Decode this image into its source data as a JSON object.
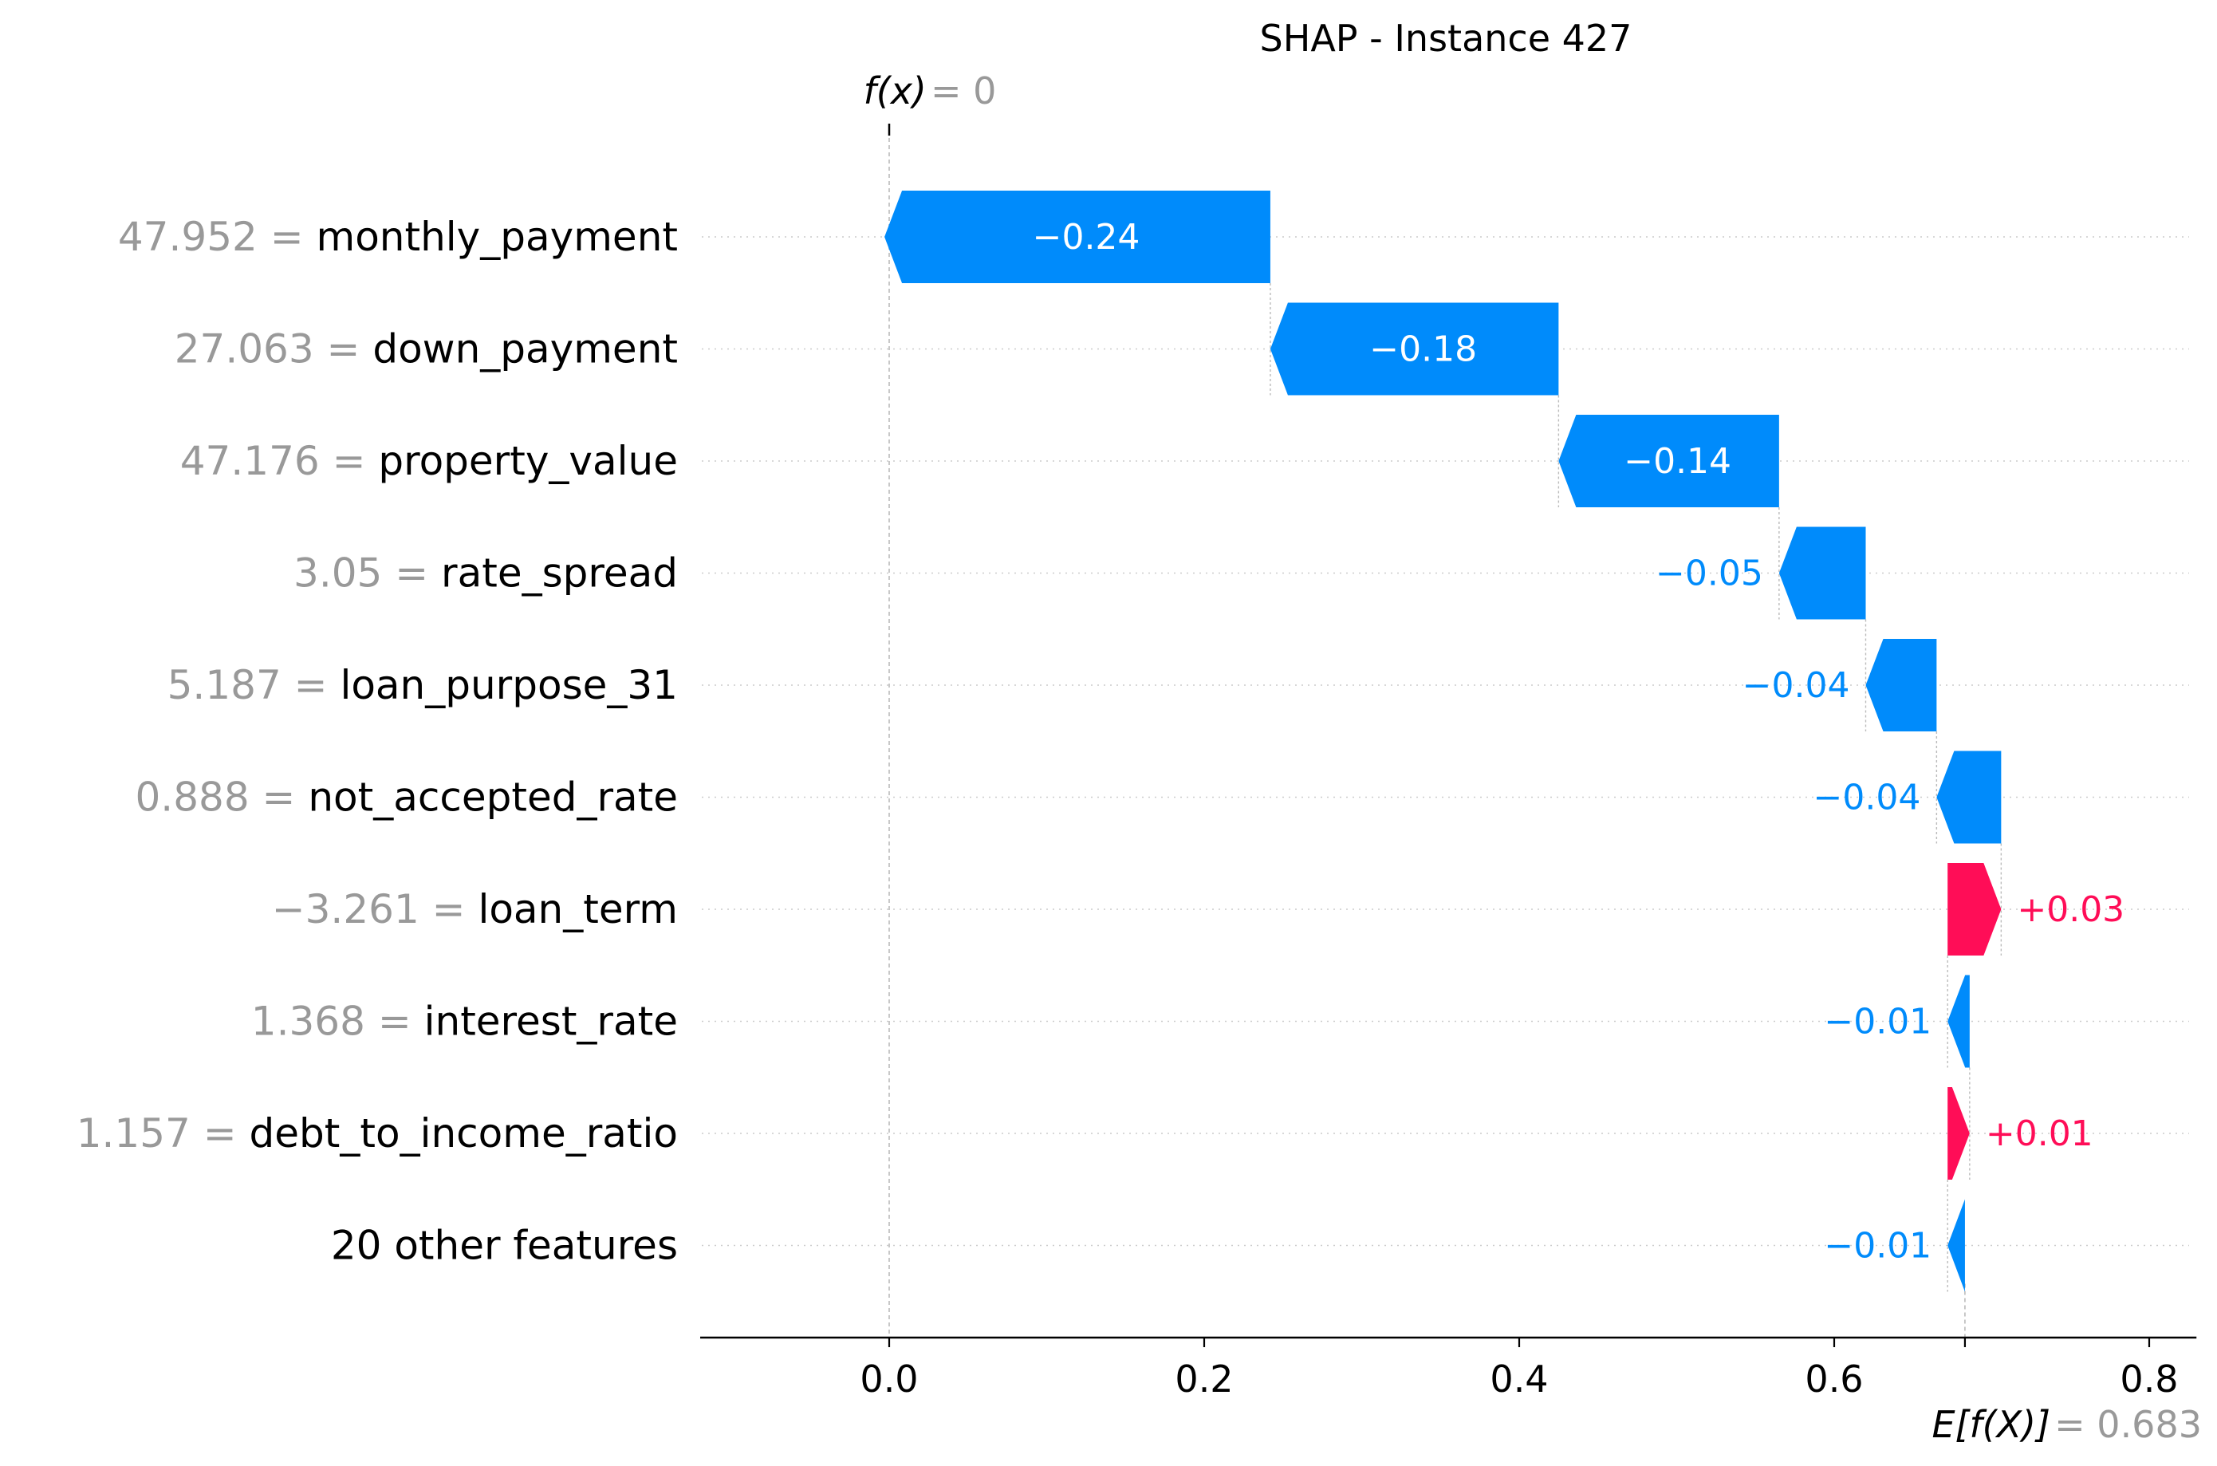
{
  "chart_data": {
    "type": "waterfall",
    "title": "SHAP - Instance 427",
    "fx_label": "f(x)",
    "fx_value_text": "0",
    "fx_value": 0,
    "efx_label": "E[f(X)]",
    "efx_value_text": "0.683",
    "base_value": 0.683,
    "xlim": [
      -0.12,
      0.83
    ],
    "xticks": [
      0.0,
      0.2,
      0.4,
      0.6,
      0.8
    ],
    "xtick_labels": [
      "0.0",
      "0.2",
      "0.4",
      "0.6",
      "0.8"
    ],
    "features": [
      {
        "value_text": "47.952",
        "name": "monthly_payment",
        "shap": -0.245,
        "label": "−0.24"
      },
      {
        "value_text": "27.063",
        "name": "down_payment",
        "shap": -0.183,
        "label": "−0.18"
      },
      {
        "value_text": "47.176",
        "name": "property_value",
        "shap": -0.14,
        "label": "−0.14"
      },
      {
        "value_text": "3.05",
        "name": "rate_spread",
        "shap": -0.055,
        "label": "−0.05"
      },
      {
        "value_text": "5.187",
        "name": "loan_purpose_31",
        "shap": -0.045,
        "label": "−0.04"
      },
      {
        "value_text": "0.888",
        "name": "not_accepted_rate",
        "shap": -0.041,
        "label": "−0.04"
      },
      {
        "value_text": "−3.261",
        "name": "loan_term",
        "shap": 0.034,
        "label": "+0.03"
      },
      {
        "value_text": "1.368",
        "name": "interest_rate",
        "shap": -0.014,
        "label": "−0.01"
      },
      {
        "value_text": "1.157",
        "name": "debt_to_income_ratio",
        "shap": 0.014,
        "label": "+0.01"
      },
      {
        "value_text": "",
        "name": "20 other features",
        "shap": -0.011,
        "label": "−0.01"
      }
    ],
    "colors": {
      "positive": "#ff0d57",
      "negative": "#008bfb",
      "label_on_bar": "#ffffff",
      "feature_value": "#999999",
      "grid": "#cccccc"
    },
    "grid": true
  }
}
